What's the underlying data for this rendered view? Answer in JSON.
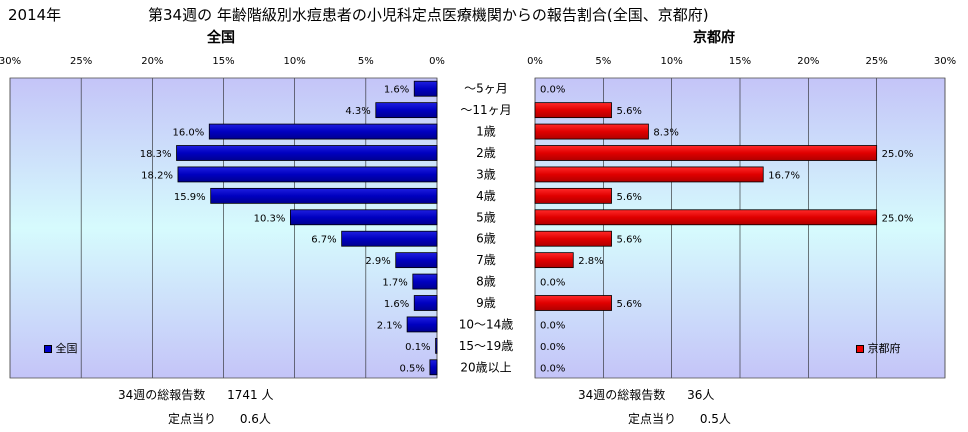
{
  "header": {
    "year": "2014年",
    "title": "第34週の 年齢階級別水痘患者の小児科定点医療機関からの報告割合(全国、京都府)"
  },
  "chart_data": [
    {
      "type": "bar",
      "orientation": "horizontal",
      "direction": "right-to-left",
      "title": "全国",
      "categories": [
        "～5ヶ月",
        "～11ヶ月",
        "1歳",
        "2歳",
        "3歳",
        "4歳",
        "5歳",
        "6歳",
        "7歳",
        "8歳",
        "9歳",
        "10～14歳",
        "15～19歳",
        "20歳以上"
      ],
      "series": [
        {
          "name": "全国",
          "values": [
            1.6,
            4.3,
            16.0,
            18.3,
            18.2,
            15.9,
            10.3,
            6.7,
            2.9,
            1.7,
            1.6,
            2.1,
            0.1,
            0.5
          ],
          "color": "#0000CC"
        }
      ],
      "value_labels": [
        "1.6%",
        "4.3%",
        "16.0%",
        "18.3%",
        "18.2%",
        "15.9%",
        "10.3%",
        "6.7%",
        "2.9%",
        "1.7%",
        "1.6%",
        "2.1%",
        "0.1%",
        "0.5%"
      ],
      "xlim": [
        0,
        30
      ],
      "xticks": [
        "0%",
        "5%",
        "10%",
        "15%",
        "20%",
        "25%",
        "30%"
      ],
      "grid": true,
      "legend": "bottom-left",
      "summary": {
        "total_label": "34週の総報告数",
        "total_value": "1741 人",
        "per_label": "定点当り",
        "per_value": "0.6人"
      }
    },
    {
      "type": "bar",
      "orientation": "horizontal",
      "direction": "left-to-right",
      "title": "京都府",
      "categories": [
        "～5ヶ月",
        "～11ヶ月",
        "1歳",
        "2歳",
        "3歳",
        "4歳",
        "5歳",
        "6歳",
        "7歳",
        "8歳",
        "9歳",
        "10～14歳",
        "15～19歳",
        "20歳以上"
      ],
      "series": [
        {
          "name": "京都府",
          "values": [
            0.0,
            5.6,
            8.3,
            25.0,
            16.7,
            5.6,
            25.0,
            5.6,
            2.8,
            0.0,
            5.6,
            0.0,
            0.0,
            0.0
          ],
          "color": "#EE0000"
        }
      ],
      "value_labels": [
        "0.0%",
        "5.6%",
        "8.3%",
        "25.0%",
        "16.7%",
        "5.6%",
        "25.0%",
        "5.6%",
        "2.8%",
        "0.0%",
        "5.6%",
        "0.0%",
        "0.0%",
        "0.0%"
      ],
      "xlim": [
        0,
        30
      ],
      "xticks": [
        "0%",
        "5%",
        "10%",
        "15%",
        "20%",
        "25%",
        "30%"
      ],
      "grid": true,
      "legend": "bottom-right",
      "summary": {
        "total_label": "34週の総報告数",
        "total_value": "36人",
        "per_label": "定点当り",
        "per_value": "0.5人"
      }
    }
  ]
}
